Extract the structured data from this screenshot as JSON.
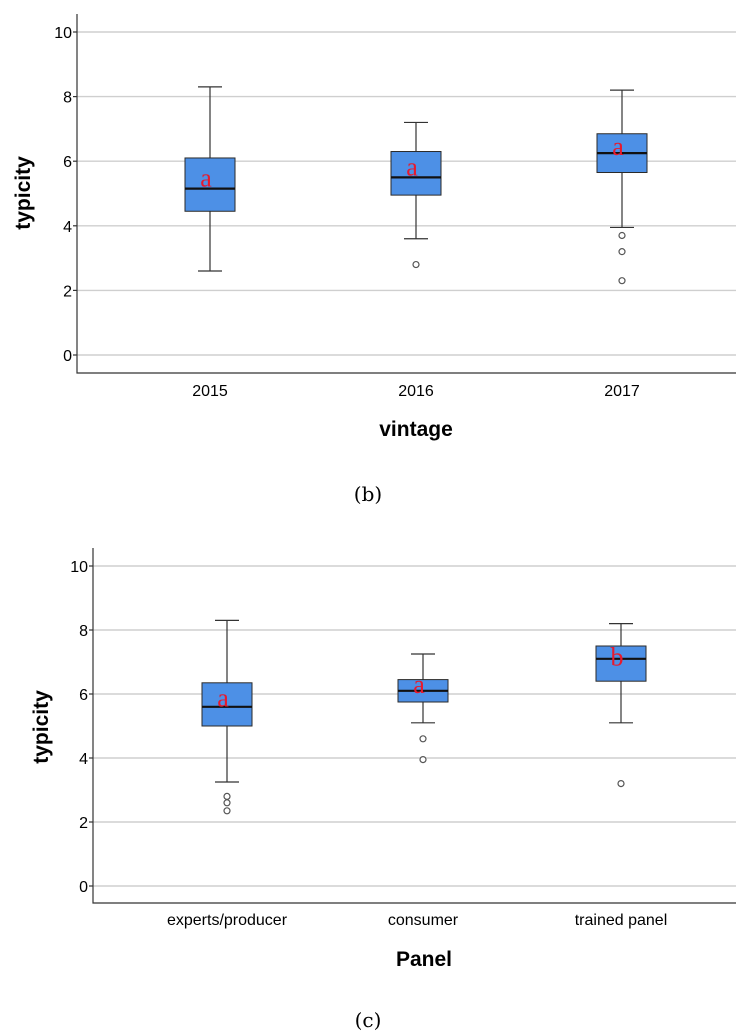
{
  "chart_data": [
    {
      "type": "boxplot",
      "caption": "(b)",
      "xlabel": "vintage",
      "ylabel": "typicity",
      "ylim": [
        0,
        10
      ],
      "yticks": [
        0,
        2,
        4,
        6,
        8,
        10
      ],
      "grid": true,
      "categories": [
        "2015",
        "2016",
        "2017"
      ],
      "boxes": [
        {
          "category": "2015",
          "whisker_low": 2.6,
          "q1": 4.45,
          "median": 5.15,
          "q3": 6.1,
          "whisker_high": 8.3,
          "outliers": [],
          "letter": "a"
        },
        {
          "category": "2016",
          "whisker_low": 3.6,
          "q1": 4.95,
          "median": 5.5,
          "q3": 6.3,
          "whisker_high": 7.2,
          "outliers": [
            2.8
          ],
          "letter": "a"
        },
        {
          "category": "2017",
          "whisker_low": 3.95,
          "q1": 5.65,
          "median": 6.25,
          "q3": 6.85,
          "whisker_high": 8.2,
          "outliers": [
            3.7,
            3.2,
            2.3
          ],
          "letter": "a"
        }
      ]
    },
    {
      "type": "boxplot",
      "caption": "(c)",
      "xlabel": "Panel",
      "ylabel": "typicity",
      "ylim": [
        0,
        10
      ],
      "yticks": [
        0,
        2,
        4,
        6,
        8,
        10
      ],
      "grid": true,
      "categories": [
        "experts/producer",
        "consumer",
        "trained panel"
      ],
      "boxes": [
        {
          "category": "experts/producer",
          "whisker_low": 3.25,
          "q1": 5.0,
          "median": 5.6,
          "q3": 6.35,
          "whisker_high": 8.3,
          "outliers": [
            2.8,
            2.6,
            2.35
          ],
          "letter": "a"
        },
        {
          "category": "consumer",
          "whisker_low": 5.1,
          "q1": 5.75,
          "median": 6.1,
          "q3": 6.45,
          "whisker_high": 7.25,
          "outliers": [
            4.6,
            3.95
          ],
          "letter": "a"
        },
        {
          "category": "trained panel",
          "whisker_low": 5.1,
          "q1": 6.4,
          "median": 7.1,
          "q3": 7.5,
          "whisker_high": 8.2,
          "outliers": [
            3.2
          ],
          "letter": "b"
        }
      ]
    }
  ]
}
